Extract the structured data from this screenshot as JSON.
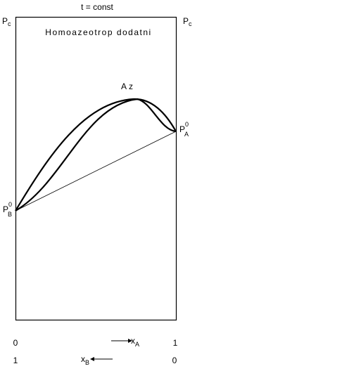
{
  "title": "t = const",
  "caption": "Homoazeotrop dodatni",
  "left_axis_label": {
    "symbol": "P",
    "subscript": "c"
  },
  "right_axis_label": {
    "symbol": "P",
    "subscript": "c"
  },
  "azeotrope_label": "Az",
  "point_a": {
    "symbol": "P",
    "superscript": "0",
    "subscript": "A"
  },
  "point_b": {
    "symbol": "P",
    "superscript": "0",
    "subscript": "B"
  },
  "x_axis": {
    "top_row": {
      "start": "0",
      "arrow_label": {
        "symbol": "x",
        "subscript": "A"
      },
      "end": "1"
    },
    "bottom_row": {
      "start": "1",
      "arrow_label": {
        "symbol": "x",
        "subscript": "B"
      },
      "end": "0"
    }
  }
}
